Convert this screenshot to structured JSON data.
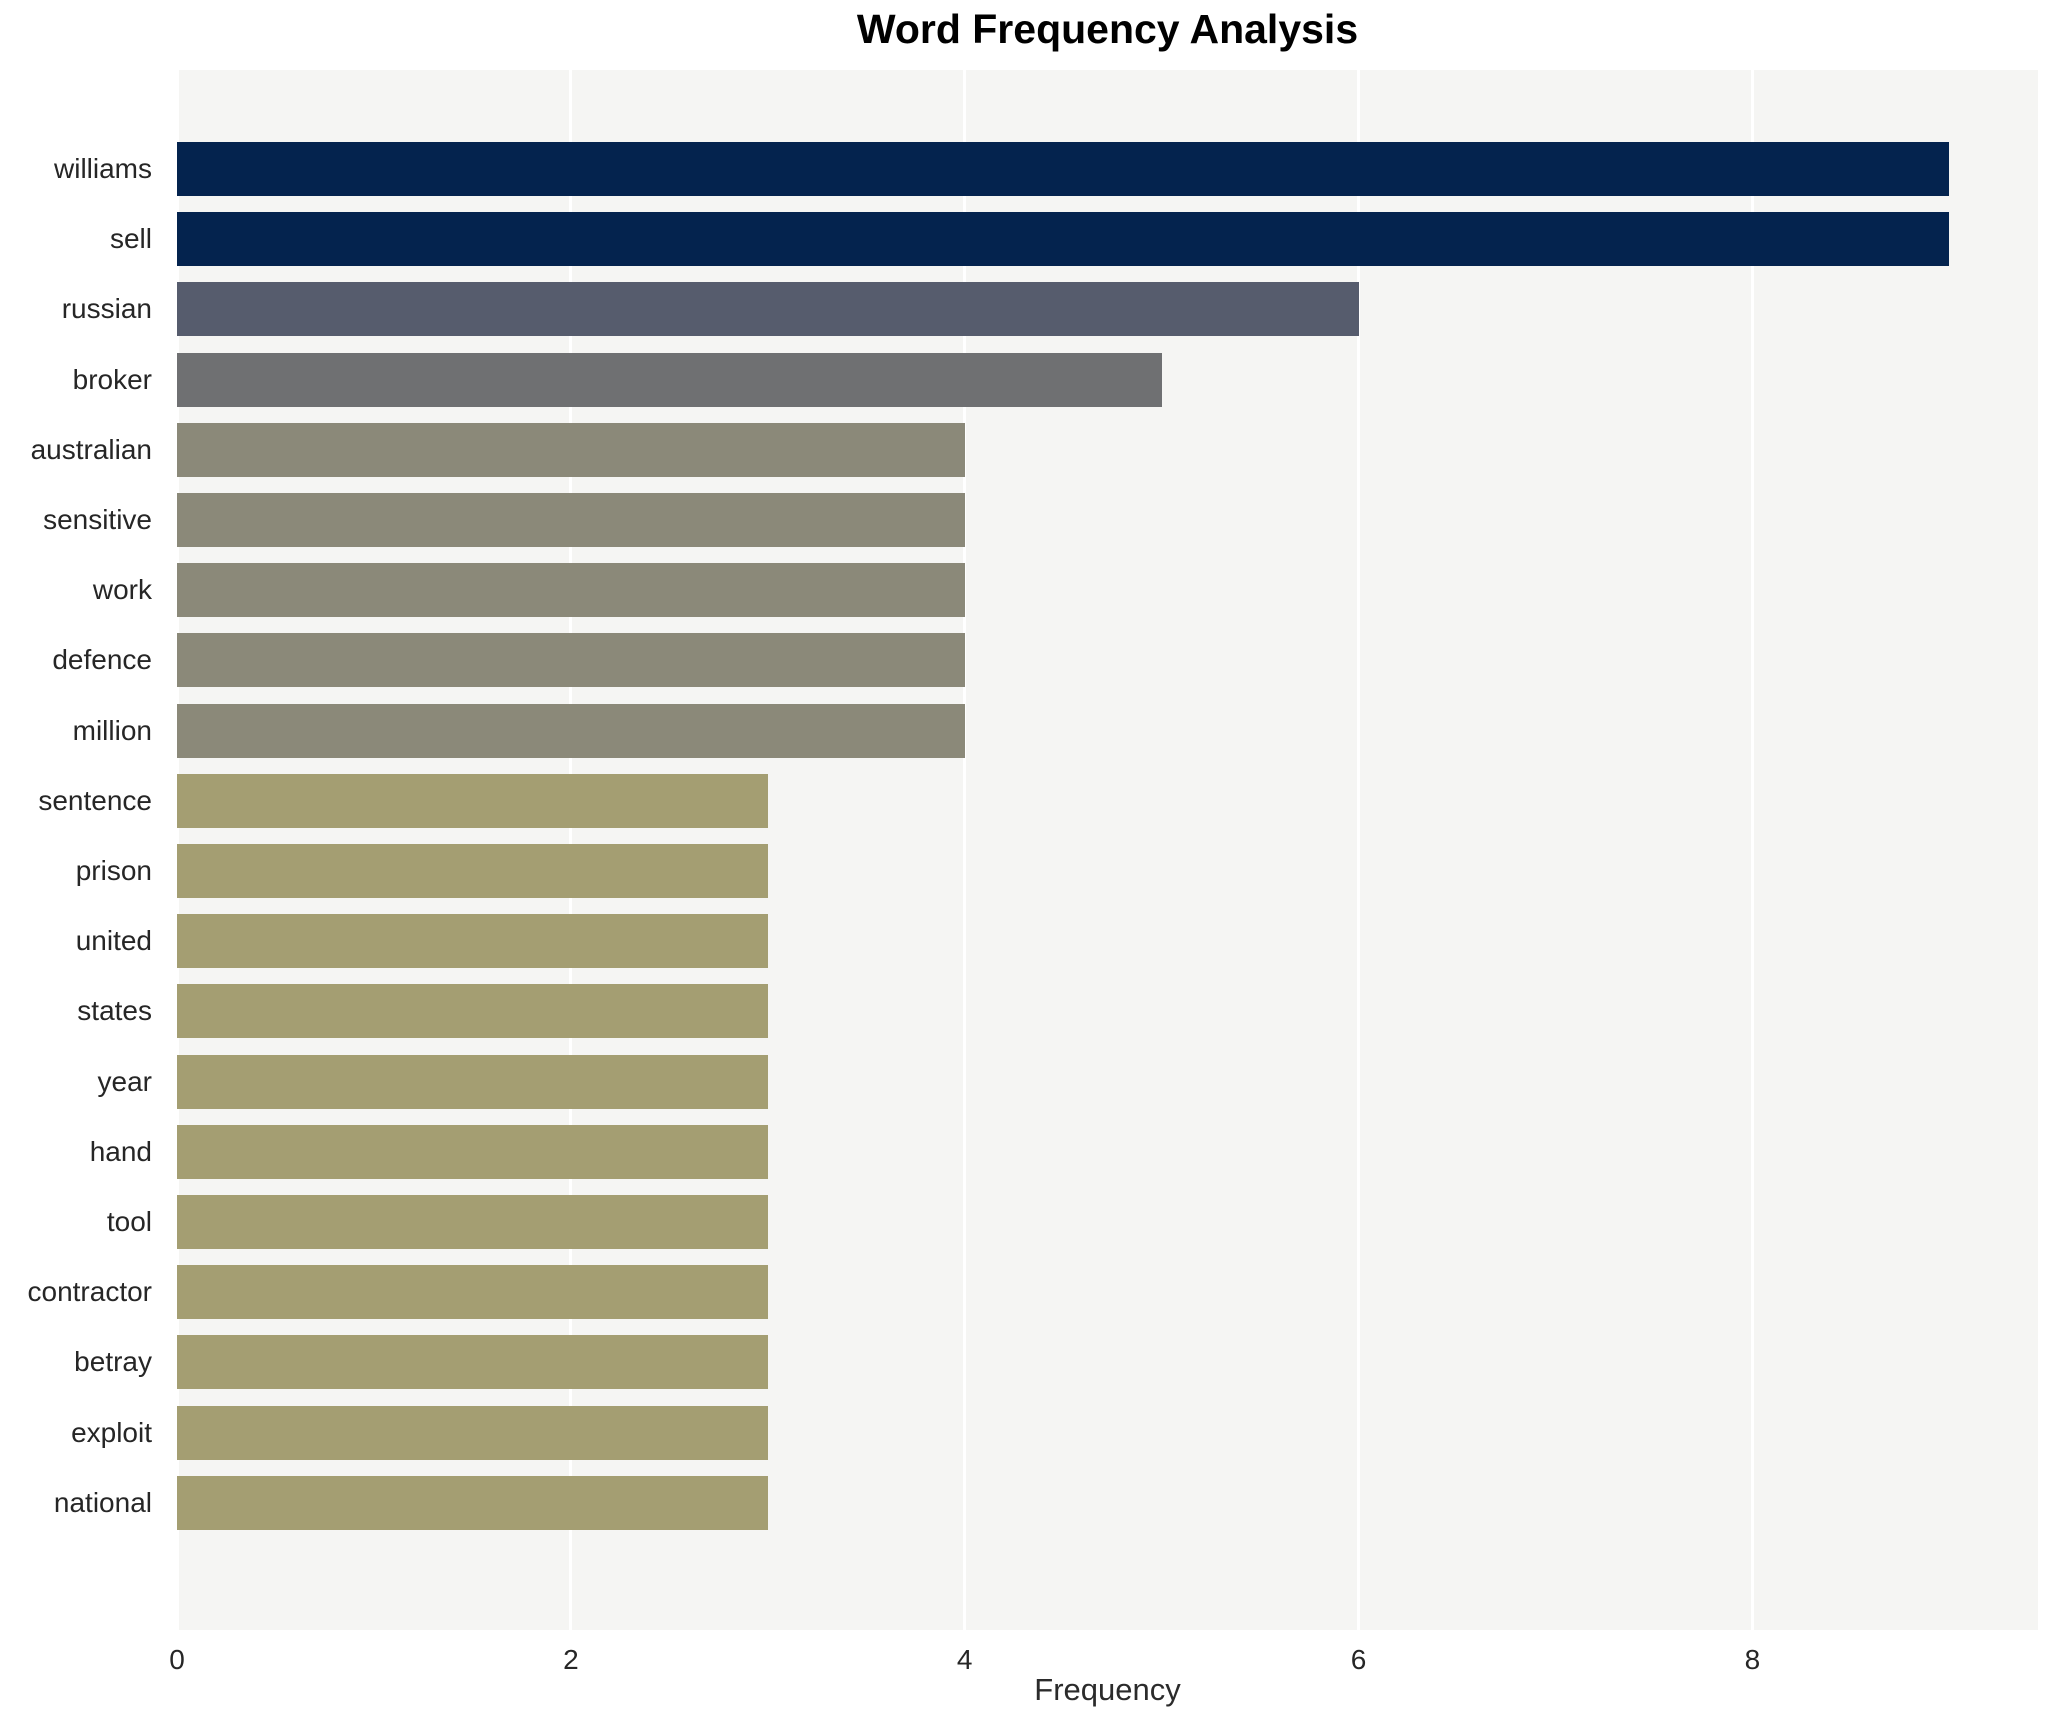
{
  "title": "Word Frequency Analysis",
  "xlabel": "Frequency",
  "chart_data": {
    "type": "bar",
    "orientation": "horizontal",
    "title": "Word Frequency Analysis",
    "xlabel": "Frequency",
    "ylabel": "",
    "xlim": [
      0,
      9.45
    ],
    "x_tick_values": [
      0,
      2,
      4,
      6,
      8
    ],
    "x_tick_labels": [
      "0",
      "2",
      "4",
      "6",
      "8"
    ],
    "grid": "vertical-white-gridlines",
    "legend": "none",
    "categories": [
      "williams",
      "sell",
      "russian",
      "broker",
      "australian",
      "sensitive",
      "work",
      "defence",
      "million",
      "sentence",
      "prison",
      "united",
      "states",
      "year",
      "hand",
      "tool",
      "contractor",
      "betray",
      "exploit",
      "national"
    ],
    "values": [
      9,
      9,
      6,
      5,
      4,
      4,
      4,
      4,
      4,
      3,
      3,
      3,
      3,
      3,
      3,
      3,
      3,
      3,
      3,
      3
    ],
    "bar_colors": [
      "#04234e",
      "#04234e",
      "#565c6d",
      "#6f7072",
      "#8b8979",
      "#8b8979",
      "#8b8979",
      "#8b8979",
      "#8b8979",
      "#a49e72",
      "#a49e72",
      "#a49e72",
      "#a49e72",
      "#a49e72",
      "#a49e72",
      "#a49e72",
      "#a49e72",
      "#a49e72",
      "#a49e72",
      "#a49e72"
    ]
  },
  "colors": {
    "canvas_bg": "#ffffff",
    "plot_bg": "#f5f5f3",
    "gridline": "#ffffff",
    "axis_text": "#262626",
    "title_text": "#000000"
  }
}
